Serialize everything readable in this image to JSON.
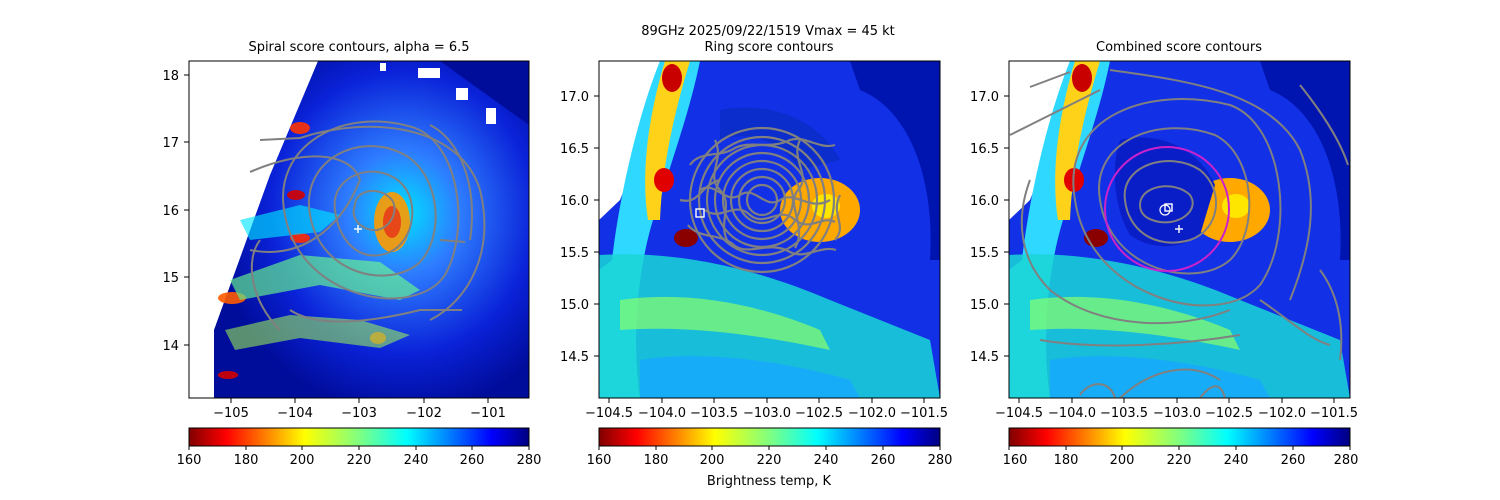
{
  "suptitle": "89GHz  2025/09/22/1519    Vmax = 45 kt",
  "colorbar_label": "Brightness temp, K",
  "colormap": "jet",
  "chart_data": [
    {
      "type": "heatmap",
      "title": "Spiral score contours, alpha =  6.5",
      "xlim": [
        -105.7,
        -100.4
      ],
      "ylim": [
        13.2,
        18.2
      ],
      "xticks": [
        "−105",
        "−104",
        "−103",
        "−102",
        "−101"
      ],
      "xtick_values": [
        -105,
        -104,
        -103,
        -102,
        -101
      ],
      "yticks": [
        "14",
        "15",
        "16",
        "17",
        "18"
      ],
      "ytick_values": [
        14,
        15,
        16,
        17,
        18
      ],
      "markers": [
        {
          "symbol": "plus",
          "x": -103.0,
          "y": 15.72
        }
      ],
      "contour_center": {
        "x": -102.6,
        "y": 16.0
      },
      "colorbar": {
        "vmin": 160,
        "vmax": 280,
        "ticks": [
          "160",
          "180",
          "200",
          "220",
          "240",
          "260",
          "280"
        ]
      }
    },
    {
      "type": "heatmap",
      "title": "Ring score contours",
      "xlim": [
        -104.6,
        -101.35
      ],
      "ylim": [
        14.1,
        17.35
      ],
      "xticks": [
        "−104.5",
        "−104.0",
        "−103.5",
        "−103.0",
        "−102.5",
        "−102.0",
        "−101.5"
      ],
      "xtick_values": [
        -104.5,
        -104.0,
        -103.5,
        -103.0,
        -102.5,
        -102.0,
        -101.5
      ],
      "yticks": [
        "14.5",
        "15.0",
        "15.5",
        "16.0",
        "16.5",
        "17.0"
      ],
      "ytick_values": [
        14.5,
        15.0,
        15.5,
        16.0,
        16.5,
        17.0
      ],
      "markers": [
        {
          "symbol": "square",
          "x": -103.65,
          "y": 15.88
        }
      ],
      "colorbar": {
        "vmin": 160,
        "vmax": 280,
        "ticks": [
          "160",
          "180",
          "200",
          "220",
          "240",
          "260",
          "280"
        ]
      }
    },
    {
      "type": "heatmap",
      "title": "Combined score contours",
      "xlim": [
        -104.6,
        -101.35
      ],
      "ylim": [
        14.1,
        17.35
      ],
      "xticks": [
        "−104.5",
        "−104.0",
        "−103.5",
        "−103.0",
        "−102.5",
        "−102.0",
        "−101.5"
      ],
      "xtick_values": [
        -104.5,
        -104.0,
        -103.5,
        -103.0,
        -102.5,
        -102.0,
        -101.5
      ],
      "yticks": [
        "14.5",
        "15.0",
        "15.5",
        "16.0",
        "16.5",
        "17.0"
      ],
      "ytick_values": [
        14.5,
        15.0,
        15.5,
        16.0,
        16.5,
        17.0
      ],
      "markers": [
        {
          "symbol": "plus",
          "x": -103.0,
          "y": 15.72
        },
        {
          "symbol": "square",
          "x": -103.12,
          "y": 15.92
        },
        {
          "symbol": "circle",
          "x": -103.15,
          "y": 15.9
        }
      ],
      "ring": {
        "x": -103.0,
        "y": 15.88,
        "radius_deg": 0.62,
        "color": "#cc22cc"
      },
      "colorbar": {
        "vmin": 160,
        "vmax": 280,
        "ticks": [
          "160",
          "180",
          "200",
          "220",
          "240",
          "260",
          "280"
        ]
      }
    }
  ]
}
